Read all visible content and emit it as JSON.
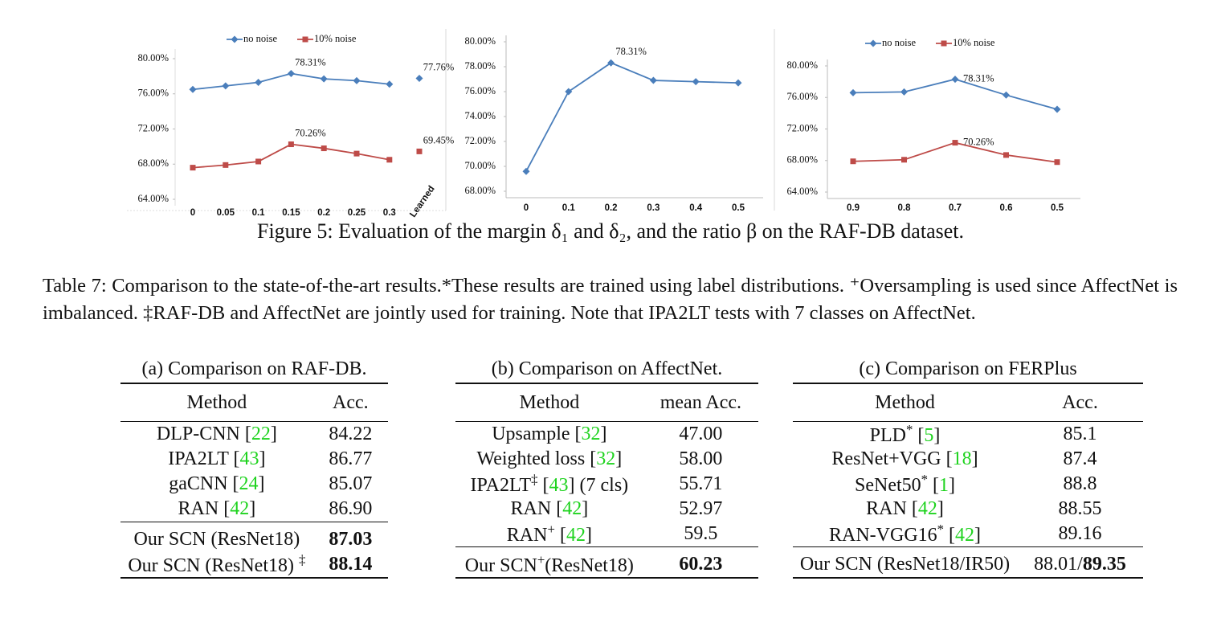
{
  "chart_data": [
    {
      "type": "line",
      "categories": [
        "0",
        "0.05",
        "0.1",
        "0.15",
        "0.2",
        "0.25",
        "0.3",
        "Learned"
      ],
      "last_point_connected": false,
      "series": [
        {
          "name": "no noise",
          "color": "#4a7ebb",
          "marker": "diamond",
          "values": [
            76.5,
            76.9,
            77.3,
            78.31,
            77.7,
            77.5,
            77.1,
            77.76
          ],
          "value_labels": [
            null,
            null,
            null,
            "78.31%",
            null,
            null,
            null,
            "77.76%"
          ]
        },
        {
          "name": "10% noise",
          "color": "#be4b48",
          "marker": "square",
          "values": [
            67.6,
            67.9,
            68.3,
            70.26,
            69.8,
            69.2,
            68.5,
            69.45
          ],
          "value_labels": [
            null,
            null,
            null,
            "70.26%",
            null,
            null,
            null,
            "69.45%"
          ]
        }
      ],
      "ylim": [
        64,
        80
      ],
      "yticks": [
        {
          "value": 64,
          "label": "64.00%"
        },
        {
          "value": 68,
          "label": "68.00%"
        },
        {
          "value": 72,
          "label": "72.00%"
        },
        {
          "value": 76,
          "label": "76.00%"
        },
        {
          "value": 80,
          "label": "80.00%"
        }
      ],
      "legend": "top"
    },
    {
      "type": "line",
      "categories": [
        "0",
        "0.1",
        "0.2",
        "0.3",
        "0.4",
        "0.5"
      ],
      "series": [
        {
          "color": "#4a7ebb",
          "marker": "diamond",
          "values": [
            69.6,
            76.0,
            78.31,
            76.9,
            76.8,
            76.7
          ],
          "value_labels": [
            null,
            null,
            "78.31%",
            null,
            null,
            null
          ]
        }
      ],
      "ylim": [
        68,
        80
      ],
      "yticks": [
        {
          "value": 68,
          "label": "68.00%"
        },
        {
          "value": 70,
          "label": "70.00%"
        },
        {
          "value": 72,
          "label": "72.00%"
        },
        {
          "value": 74,
          "label": "74.00%"
        },
        {
          "value": 76,
          "label": "76.00%"
        },
        {
          "value": 78,
          "label": "78.00%"
        },
        {
          "value": 80,
          "label": "80.00%"
        }
      ]
    },
    {
      "type": "line",
      "categories": [
        "0.9",
        "0.8",
        "0.7",
        "0.6",
        "0.5"
      ],
      "series": [
        {
          "name": "no noise",
          "color": "#4a7ebb",
          "marker": "diamond",
          "values": [
            76.6,
            76.7,
            78.31,
            76.3,
            74.5
          ],
          "value_labels": [
            null,
            null,
            "78.31%",
            null,
            null
          ]
        },
        {
          "name": "10% noise",
          "color": "#be4b48",
          "marker": "square",
          "values": [
            67.9,
            68.1,
            70.26,
            68.7,
            67.8
          ],
          "value_labels": [
            null,
            null,
            "70.26%",
            null,
            null
          ]
        }
      ],
      "ylim": [
        64,
        80
      ],
      "yticks": [
        {
          "value": 64,
          "label": "64.00%"
        },
        {
          "value": 68,
          "label": "68.00%"
        },
        {
          "value": 72,
          "label": "72.00%"
        },
        {
          "value": 76,
          "label": "76.00%"
        },
        {
          "value": 80,
          "label": "80.00%"
        }
      ],
      "legend": "top"
    }
  ],
  "figure_caption": "Figure 5: Evaluation of the margin δ₁ and δ₂, and the ratio β on the RAF-DB dataset.",
  "table_caption": "Table 7: Comparison to the state-of-the-art results.*These results are trained using label distributions. ⁺Oversampling is used since AffectNet is imbalanced. ‡RAF-DB and AffectNet are jointly used for training. Note that IPA2LT tests with 7 classes on AffectNet.",
  "tables": [
    {
      "caption": "(a) Comparison on RAF-DB.",
      "header": [
        "Method",
        "Acc."
      ],
      "groups": [
        [
          [
            [
              "DLP-CNN [",
              {
                "text": "22",
                "style": "cite"
              },
              "]"
            ],
            [
              "84.22"
            ]
          ],
          [
            [
              "IPA2LT [",
              {
                "text": "43",
                "style": "cite"
              },
              "]"
            ],
            [
              "86.77"
            ]
          ],
          [
            [
              "gaCNN [",
              {
                "text": "24",
                "style": "cite"
              },
              "]"
            ],
            [
              "85.07"
            ]
          ],
          [
            [
              "RAN [",
              {
                "text": "42",
                "style": "cite"
              },
              "]"
            ],
            [
              "86.90"
            ]
          ]
        ],
        [
          [
            [
              "Our SCN (ResNet18)"
            ],
            [
              {
                "text": "87.03",
                "style": "bold"
              }
            ]
          ],
          [
            [
              "Our SCN (ResNet18) ",
              {
                "text": "‡",
                "style": "sup"
              }
            ],
            [
              {
                "text": "88.14",
                "style": "bold"
              }
            ]
          ]
        ]
      ]
    },
    {
      "caption": "(b) Comparison on AffectNet.",
      "header": [
        "Method",
        "mean Acc."
      ],
      "groups": [
        [
          [
            [
              "Upsample [",
              {
                "text": "32",
                "style": "cite"
              },
              "]"
            ],
            [
              "47.00"
            ]
          ],
          [
            [
              "Weighted loss [",
              {
                "text": "32",
                "style": "cite"
              },
              "]"
            ],
            [
              "58.00"
            ]
          ],
          [
            [
              "IPA2LT",
              {
                "text": "‡",
                "style": "sup"
              },
              " [",
              {
                "text": "43",
                "style": "cite"
              },
              "] (7 cls)"
            ],
            [
              "55.71"
            ]
          ],
          [
            [
              "RAN [",
              {
                "text": "42",
                "style": "cite"
              },
              "]"
            ],
            [
              "52.97"
            ]
          ],
          [
            [
              "RAN",
              {
                "text": "+",
                "style": "sup"
              },
              " [",
              {
                "text": "42",
                "style": "cite"
              },
              "]"
            ],
            [
              "59.5"
            ]
          ]
        ],
        [
          [
            [
              "Our SCN",
              {
                "text": "+",
                "style": "sup"
              },
              "(ResNet18)"
            ],
            [
              {
                "text": "60.23",
                "style": "bold"
              }
            ]
          ]
        ]
      ]
    },
    {
      "caption": "(c) Comparison on FERPlus",
      "header": [
        "Method",
        "Acc."
      ],
      "groups": [
        [
          [
            [
              "PLD",
              {
                "text": "*",
                "style": "sup"
              },
              " [",
              {
                "text": "5",
                "style": "cite"
              },
              "]"
            ],
            [
              "85.1"
            ]
          ],
          [
            [
              "ResNet+VGG [",
              {
                "text": "18",
                "style": "cite"
              },
              "]"
            ],
            [
              "87.4"
            ]
          ],
          [
            [
              "SeNet50",
              {
                "text": "*",
                "style": "sup"
              },
              " [",
              {
                "text": "1",
                "style": "cite"
              },
              "]"
            ],
            [
              "88.8"
            ]
          ],
          [
            [
              "RAN [",
              {
                "text": "42",
                "style": "cite"
              },
              "]"
            ],
            [
              "88.55"
            ]
          ],
          [
            [
              "RAN-VGG16",
              {
                "text": "*",
                "style": "sup"
              },
              " [",
              {
                "text": "42",
                "style": "cite"
              },
              "]"
            ],
            [
              "89.16"
            ]
          ]
        ],
        [
          [
            [
              "Our SCN (ResNet18/IR50)"
            ],
            [
              "88.01/",
              {
                "text": "89.35",
                "style": "bold"
              }
            ]
          ]
        ]
      ]
    }
  ]
}
